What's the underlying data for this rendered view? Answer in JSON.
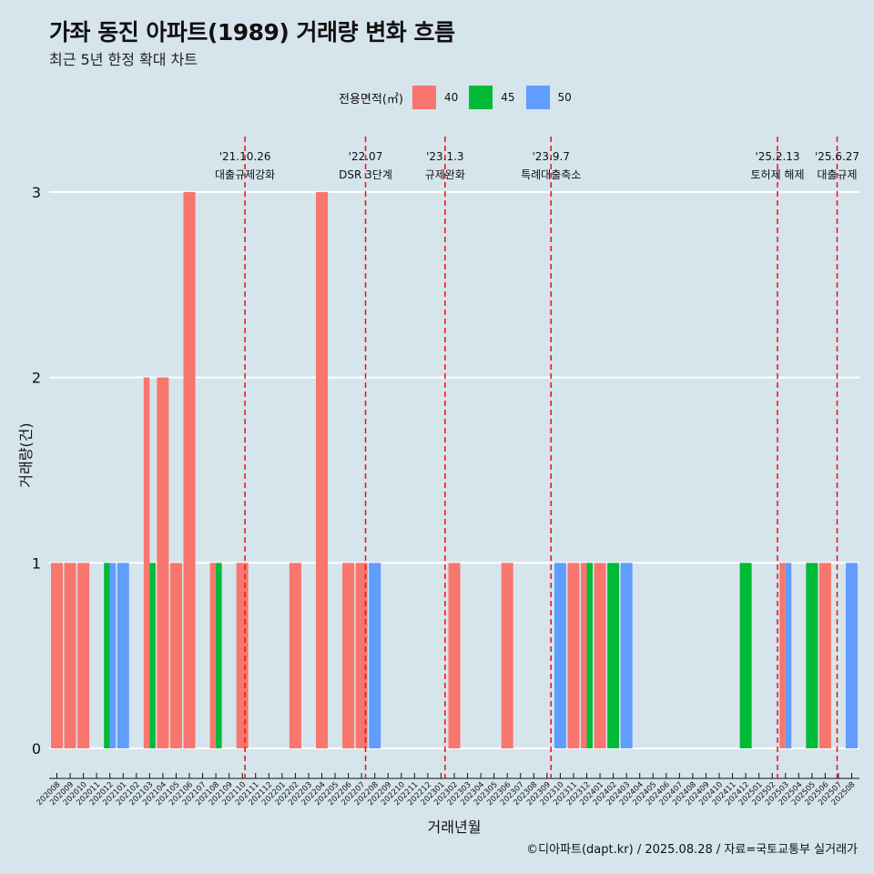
{
  "title": "가좌 동진 아파트(1989) 거래량 변화 흐름",
  "subtitle": "최근 5년 한정 확대 차트",
  "caption": "©디아파트(dapt.kr) / 2025.08.28 / 자료=국토교통부 실거래가",
  "colors": {
    "40": "#f8766d",
    "45": "#00ba38",
    "50": "#619cff",
    "event_line": "#ee1111",
    "grid": "#ffffff",
    "background": "#d6e4ec"
  },
  "chart_data": {
    "type": "bar",
    "title": "가좌 동진 아파트(1989) 거래량 변화 흐름",
    "subtitle": "최근 5년 한정 확대 차트",
    "xlabel": "거래년월",
    "ylabel": "거래량(건)",
    "ylim": [
      0,
      3
    ],
    "yticks": [
      0,
      1,
      2,
      3
    ],
    "legend_title": "전용면적(㎡)",
    "legend_position": "top",
    "grid": true,
    "categories": [
      "202008",
      "202009",
      "202010",
      "202011",
      "202012",
      "202101",
      "202102",
      "202103",
      "202104",
      "202105",
      "202106",
      "202107",
      "202108",
      "202109",
      "202110",
      "202111",
      "202112",
      "202201",
      "202202",
      "202203",
      "202204",
      "202205",
      "202206",
      "202207",
      "202208",
      "202209",
      "202210",
      "202211",
      "202212",
      "202301",
      "202302",
      "202303",
      "202304",
      "202305",
      "202306",
      "202307",
      "202308",
      "202309",
      "202310",
      "202311",
      "202312",
      "202401",
      "202402",
      "202403",
      "202404",
      "202405",
      "202406",
      "202407",
      "202408",
      "202409",
      "202410",
      "202411",
      "202412",
      "202501",
      "202502",
      "202503",
      "202504",
      "202505",
      "202506",
      "202507",
      "202508"
    ],
    "series": [
      {
        "name": "40",
        "values": [
          1,
          1,
          1,
          0,
          0,
          0,
          0,
          2,
          2,
          1,
          3,
          0,
          1,
          0,
          1,
          0,
          0,
          0,
          1,
          0,
          3,
          0,
          1,
          1,
          0,
          0,
          0,
          0,
          0,
          0,
          1,
          0,
          0,
          0,
          1,
          0,
          0,
          0,
          0,
          1,
          1,
          1,
          0,
          0,
          0,
          0,
          0,
          0,
          0,
          0,
          0,
          0,
          0,
          0,
          0,
          1,
          0,
          0,
          1,
          0,
          0
        ]
      },
      {
        "name": "45",
        "values": [
          0,
          0,
          0,
          0,
          1,
          0,
          0,
          1,
          0,
          0,
          0,
          0,
          1,
          0,
          0,
          0,
          0,
          0,
          0,
          0,
          0,
          0,
          0,
          0,
          0,
          0,
          0,
          0,
          0,
          0,
          0,
          0,
          0,
          0,
          0,
          0,
          0,
          0,
          0,
          0,
          1,
          0,
          1,
          0,
          0,
          0,
          0,
          0,
          0,
          0,
          0,
          0,
          1,
          0,
          0,
          0,
          0,
          1,
          0,
          0,
          0
        ]
      },
      {
        "name": "50",
        "values": [
          0,
          0,
          0,
          0,
          1,
          1,
          0,
          0,
          0,
          0,
          0,
          0,
          0,
          0,
          0,
          0,
          0,
          0,
          0,
          0,
          0,
          0,
          0,
          0,
          1,
          0,
          0,
          0,
          0,
          0,
          0,
          0,
          0,
          0,
          0,
          0,
          0,
          0,
          1,
          0,
          0,
          0,
          0,
          1,
          0,
          0,
          0,
          0,
          0,
          0,
          0,
          0,
          0,
          0,
          0,
          1,
          0,
          0,
          0,
          0,
          1
        ]
      }
    ],
    "events": [
      {
        "date": "'21.10.26",
        "label": "대출규제강화",
        "x": 14.2
      },
      {
        "date": "'22.07",
        "label": "DSR 3단계",
        "x": 23.3
      },
      {
        "date": "'23.1.3",
        "label": "규제완화",
        "x": 29.3
      },
      {
        "date": "'23.9.7",
        "label": "특례대출축소",
        "x": 37.3
      },
      {
        "date": "'25.2.13",
        "label": "토허제 해제",
        "x": 54.4
      },
      {
        "date": "'25.6.27",
        "label": "대출규제",
        "x": 58.9
      }
    ]
  }
}
